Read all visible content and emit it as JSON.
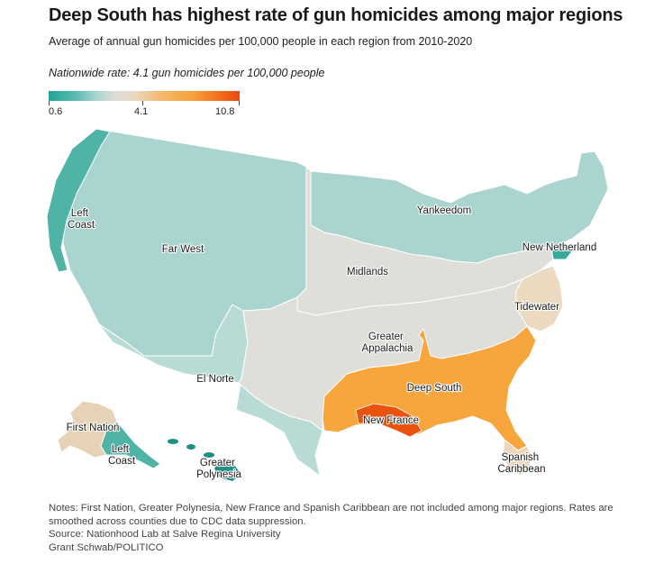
{
  "title": "Deep South has highest rate of gun homicides among major regions",
  "subtitle": "Average of annual gun homicides per 100,000 people in each region from 2010-2020",
  "nationwide": "Nationwide rate: 4.1 gun homicides per 100,000 people",
  "scale": {
    "min": "0.6",
    "mid": "4.1",
    "max": "10.8"
  },
  "colors": {
    "far_west": "#a9d4cf",
    "left_coast": "#4fb3a6",
    "el_norte": "#b9dbd6",
    "yankeedom": "#a9d4cf",
    "new_netherland": "#38a99c",
    "midlands": "#dfded9",
    "greater_appalachia": "#dfded9",
    "tidewater": "#ebd9c0",
    "deep_south": "#f7a63e",
    "new_france": "#e9520f",
    "spanish_caribbean": "#ecd7ba",
    "first_nation": "#e6d2b6",
    "greater_polynesia": "#1e8f83"
  },
  "regions": {
    "left_coast": "Left\nCoast",
    "far_west": "Far West",
    "yankeedom": "Yankeedom",
    "new_netherland": "New Netherland",
    "midlands": "Midlands",
    "tidewater": "Tidewater",
    "greater_appalachia": "Greater\nAppalachia",
    "deep_south": "Deep South",
    "new_france": "New France",
    "el_norte": "El Norte",
    "first_nation": "First Nation",
    "left_coast_ak": "Left\nCoast",
    "greater_polynesia": "Greater\nPolynesia",
    "spanish_caribbean": "Spanish\nCaribbean"
  },
  "notes": {
    "line1": "Notes: First Nation, Greater Polynesia, New France and Spanish Caribbean are not included among major regions. Rates are smoothed across counties due to CDC data suppression.",
    "source": "Source: Nationhood Lab at Salve Regina University",
    "credit": "Grant Schwab/POLITICO"
  }
}
